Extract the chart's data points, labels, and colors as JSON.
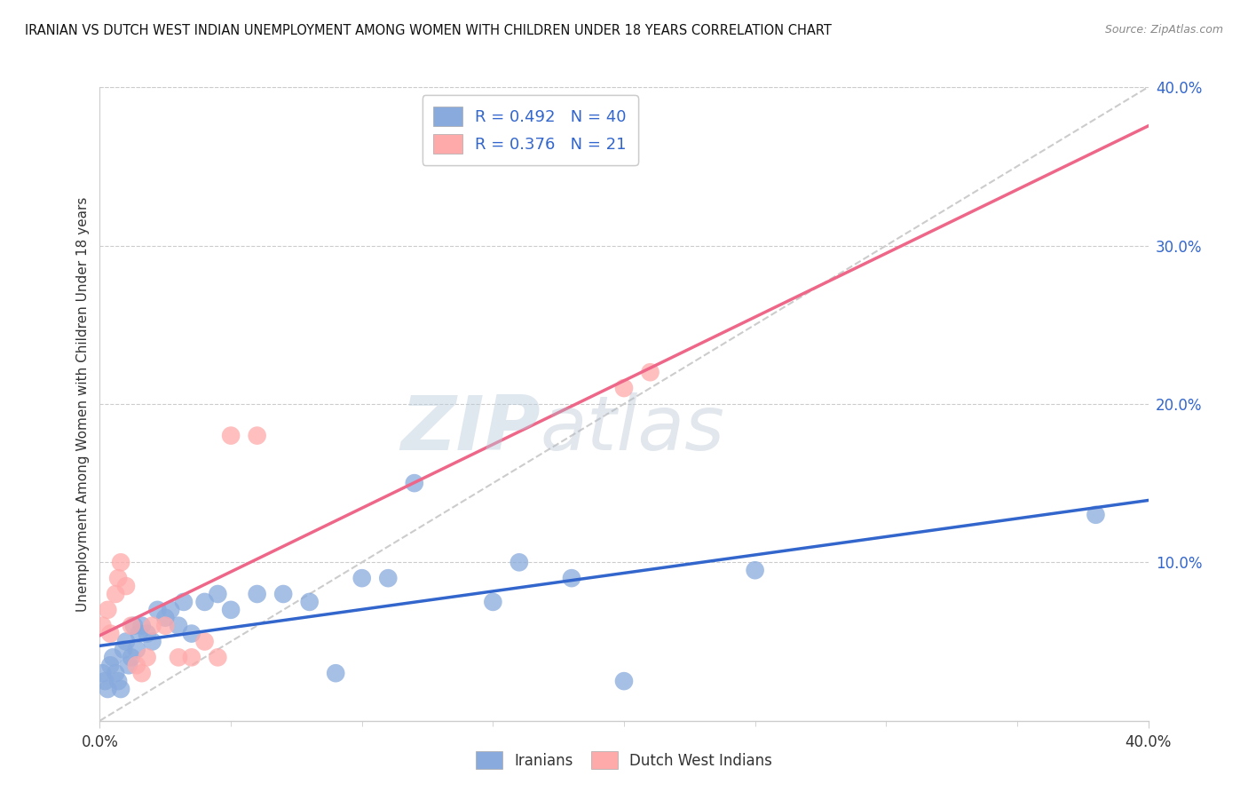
{
  "title": "IRANIAN VS DUTCH WEST INDIAN UNEMPLOYMENT AMONG WOMEN WITH CHILDREN UNDER 18 YEARS CORRELATION CHART",
  "source": "Source: ZipAtlas.com",
  "ylabel": "Unemployment Among Women with Children Under 18 years",
  "xlim": [
    0.0,
    0.4
  ],
  "ylim": [
    -0.01,
    0.42
  ],
  "plot_ylim": [
    0.0,
    0.4
  ],
  "xtick_positions": [
    0.0,
    0.4
  ],
  "ytick_right": [
    0.1,
    0.2,
    0.3,
    0.4
  ],
  "blue_R": 0.492,
  "blue_N": 40,
  "pink_R": 0.376,
  "pink_N": 21,
  "blue_color": "#88AADD",
  "pink_color": "#FFAAAA",
  "blue_line_color": "#3366CC",
  "pink_line_color": "#EE6688",
  "diag_color": "#CCCCCC",
  "legend_color": "#3366CC",
  "watermark_zip": "ZIP",
  "watermark_atlas": "atlas",
  "blue_x": [
    0.001,
    0.002,
    0.003,
    0.004,
    0.005,
    0.006,
    0.007,
    0.008,
    0.009,
    0.01,
    0.011,
    0.012,
    0.013,
    0.014,
    0.015,
    0.016,
    0.018,
    0.02,
    0.022,
    0.025,
    0.027,
    0.03,
    0.032,
    0.035,
    0.04,
    0.045,
    0.05,
    0.06,
    0.07,
    0.08,
    0.09,
    0.1,
    0.11,
    0.12,
    0.15,
    0.16,
    0.18,
    0.2,
    0.25,
    0.38
  ],
  "blue_y": [
    0.03,
    0.025,
    0.02,
    0.035,
    0.04,
    0.03,
    0.025,
    0.02,
    0.045,
    0.05,
    0.035,
    0.04,
    0.06,
    0.045,
    0.055,
    0.06,
    0.055,
    0.05,
    0.07,
    0.065,
    0.07,
    0.06,
    0.075,
    0.055,
    0.075,
    0.08,
    0.07,
    0.08,
    0.08,
    0.075,
    0.03,
    0.09,
    0.09,
    0.15,
    0.075,
    0.1,
    0.09,
    0.025,
    0.095,
    0.13
  ],
  "pink_x": [
    0.001,
    0.003,
    0.004,
    0.006,
    0.007,
    0.008,
    0.01,
    0.012,
    0.014,
    0.016,
    0.018,
    0.02,
    0.025,
    0.03,
    0.035,
    0.04,
    0.045,
    0.05,
    0.06,
    0.2,
    0.21
  ],
  "pink_y": [
    0.06,
    0.07,
    0.055,
    0.08,
    0.09,
    0.1,
    0.085,
    0.06,
    0.035,
    0.03,
    0.04,
    0.06,
    0.06,
    0.04,
    0.04,
    0.05,
    0.04,
    0.18,
    0.18,
    0.21,
    0.22
  ]
}
